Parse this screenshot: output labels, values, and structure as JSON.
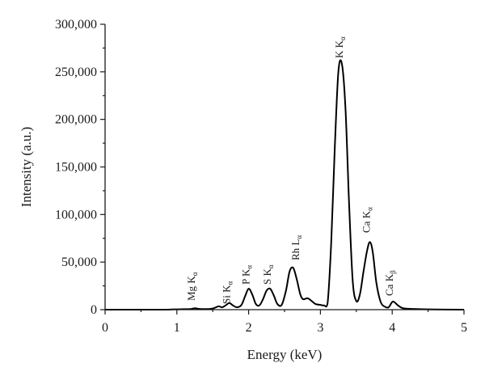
{
  "chart_data": {
    "type": "line",
    "title": "",
    "xlabel": "Energy (keV)",
    "ylabel": "Intensity (a.u.)",
    "xlim": [
      0,
      5
    ],
    "ylim": [
      0,
      300000
    ],
    "x_ticks": [
      0,
      1,
      2,
      3,
      4,
      5
    ],
    "x_tick_labels": [
      "0",
      "1",
      "2",
      "3",
      "4",
      "5"
    ],
    "y_ticks": [
      0,
      50000,
      100000,
      150000,
      200000,
      250000,
      300000
    ],
    "y_tick_labels": [
      "0",
      "50,000",
      "100,000",
      "150,000",
      "200,000",
      "250,000",
      "300,000"
    ],
    "grid": false,
    "legend": "none",
    "series": [
      {
        "color": "#000000",
        "x": [
          0.0,
          0.8,
          0.95,
          1.1,
          1.2,
          1.25,
          1.3,
          1.4,
          1.5,
          1.58,
          1.63,
          1.68,
          1.73,
          1.78,
          1.84,
          1.9,
          1.95,
          2.0,
          2.05,
          2.1,
          2.15,
          2.2,
          2.25,
          2.3,
          2.35,
          2.4,
          2.46,
          2.52,
          2.57,
          2.62,
          2.67,
          2.72,
          2.76,
          2.82,
          2.88,
          2.93,
          3.0,
          3.05,
          3.1,
          3.15,
          3.2,
          3.25,
          3.3,
          3.35,
          3.4,
          3.45,
          3.5,
          3.55,
          3.6,
          3.65,
          3.69,
          3.73,
          3.78,
          3.84,
          3.9,
          3.95,
          4.01,
          4.08,
          4.15,
          4.3,
          4.5,
          5.0
        ],
        "y": [
          0,
          0,
          300,
          500,
          800,
          1500,
          900,
          600,
          1200,
          3500,
          2500,
          4500,
          7000,
          4500,
          2500,
          5000,
          14000,
          22000,
          16000,
          6000,
          4500,
          11000,
          20000,
          22000,
          15000,
          6000,
          5000,
          20000,
          40000,
          44000,
          32000,
          16000,
          11000,
          12000,
          9000,
          6000,
          5000,
          4500,
          7000,
          70000,
          170000,
          250000,
          258000,
          210000,
          110000,
          30000,
          9000,
          16000,
          40000,
          62000,
          71000,
          60000,
          28000,
          8000,
          3000,
          2500,
          8500,
          4500,
          1500,
          700,
          300,
          0
        ]
      }
    ],
    "annotations": [
      {
        "main": "Mg K",
        "sub": "α",
        "x": 1.25
      },
      {
        "main": "Si K",
        "sub": "α",
        "x": 1.74
      },
      {
        "main": "P K",
        "sub": "α",
        "x": 2.01
      },
      {
        "main": "S K",
        "sub": "α",
        "x": 2.31
      },
      {
        "main": "Rh L",
        "sub": "α",
        "x": 2.7
      },
      {
        "main": "K K",
        "sub": "α",
        "x": 3.31
      },
      {
        "main": "Ca K",
        "sub": "α",
        "x": 3.69
      },
      {
        "main": "Ca K",
        "sub": "β",
        "x": 4.01
      }
    ]
  }
}
